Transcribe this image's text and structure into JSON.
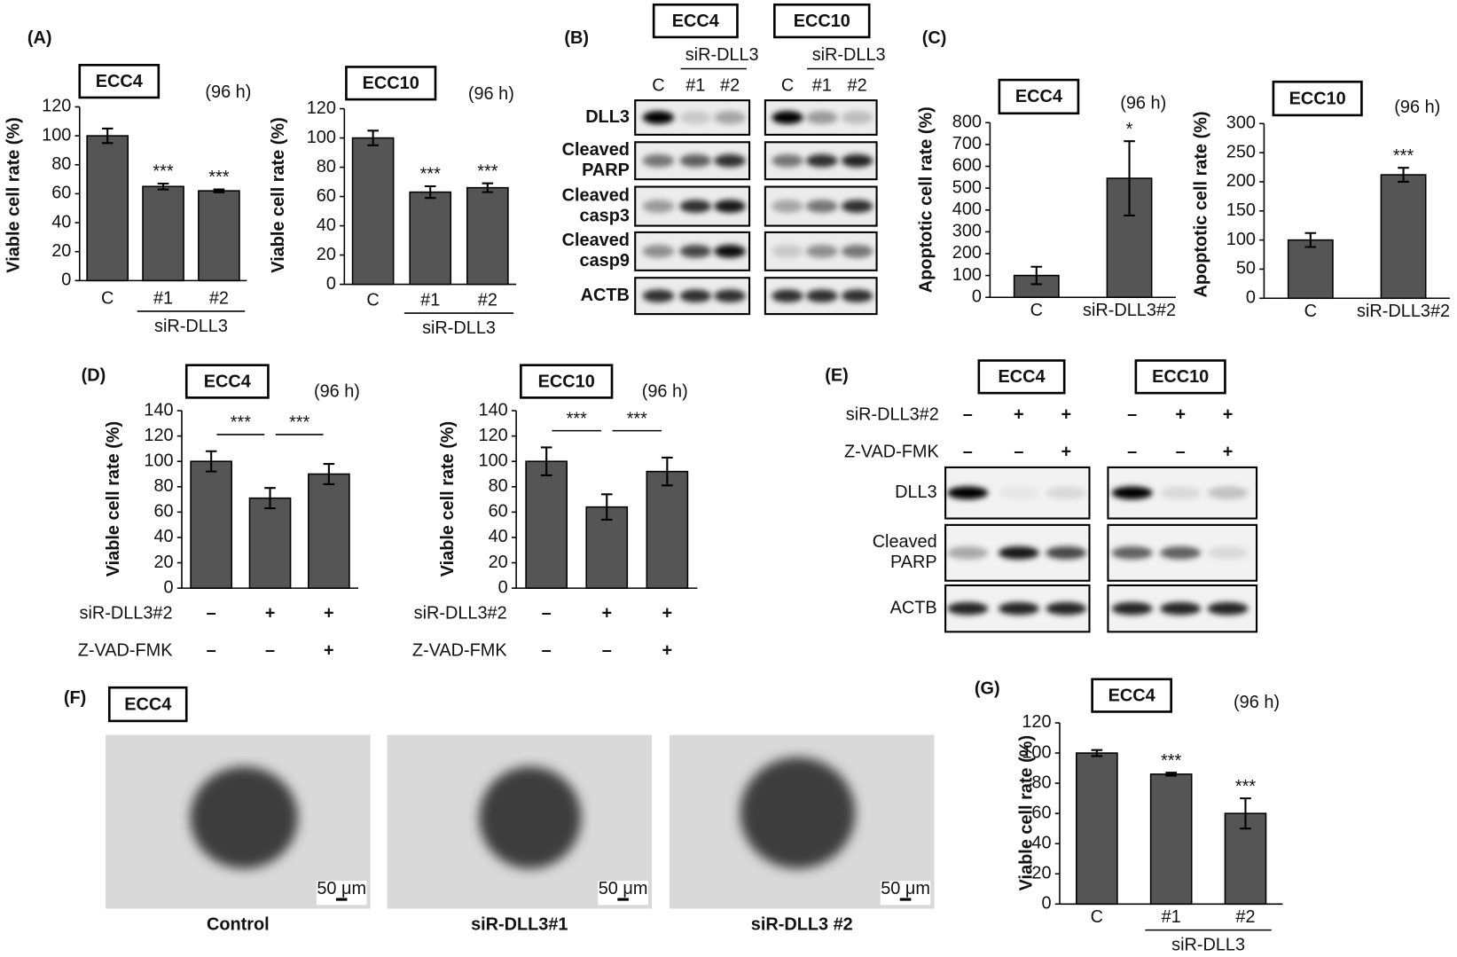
{
  "panel_labels": [
    "(A)",
    "(C)",
    "(D)",
    "(G)"
  ],
  "chart_data": [
    {
      "type": "bar",
      "title": "ECC4",
      "subtitle": "(96 h)",
      "y_label": "Viable cell rate (%)",
      "categories": [
        "C",
        "#1",
        "#2"
      ],
      "category_group": "siR-DLL3",
      "values": [
        100,
        65,
        62
      ],
      "errors": [
        5,
        2,
        1
      ],
      "annotations": [
        null,
        "***",
        "***"
      ],
      "ylim": [
        0,
        120
      ],
      "yticks": [
        0,
        20,
        40,
        60,
        80,
        100,
        120
      ],
      "color": "#555555"
    },
    {
      "type": "bar",
      "title": "ECC10",
      "subtitle": "(96 h)",
      "y_label": "Viable cell rate (%)",
      "categories": [
        "C",
        "#1",
        "#2"
      ],
      "category_group": "siR-DLL3",
      "values": [
        100,
        63,
        66
      ],
      "errors": [
        5,
        4,
        3
      ],
      "annotations": [
        null,
        "***",
        "***"
      ],
      "ylim": [
        0,
        120
      ],
      "yticks": [
        0,
        20,
        40,
        60,
        80,
        100,
        120
      ],
      "color": "#555555"
    },
    {
      "type": "bar",
      "title": "ECC4",
      "subtitle": "(96 h)",
      "y_label": "Apoptotic cell rate (%)",
      "categories": [
        "C",
        "siR-DLL3#2"
      ],
      "values": [
        100,
        545
      ],
      "errors": [
        40,
        170
      ],
      "annotations": [
        null,
        "*"
      ],
      "ylim": [
        0,
        800
      ],
      "yticks": [
        0,
        100,
        200,
        300,
        400,
        500,
        600,
        700,
        800
      ],
      "color": "#555555"
    },
    {
      "type": "bar",
      "title": "ECC10",
      "subtitle": "(96 h)",
      "y_label": "Apoptotic cell rate (%)",
      "categories": [
        "C",
        "siR-DLL3#2"
      ],
      "values": [
        100,
        212
      ],
      "errors": [
        12,
        12
      ],
      "annotations": [
        null,
        "***"
      ],
      "ylim": [
        0,
        300
      ],
      "yticks": [
        0,
        50,
        100,
        150,
        200,
        250,
        300
      ],
      "color": "#555555"
    },
    {
      "type": "bar",
      "title": "ECC4",
      "subtitle": "(96 h)",
      "y_label": "Viable cell rate (%)",
      "values": [
        100,
        71,
        90
      ],
      "errors": [
        8,
        8,
        8
      ],
      "significance": [
        "***",
        "***"
      ],
      "conditions": [
        {
          "name": "siR-DLL3#2",
          "marks": [
            "–",
            "+",
            "+"
          ]
        },
        {
          "name": "Z-VAD-FMK",
          "marks": [
            "–",
            "–",
            "+"
          ]
        }
      ],
      "ylim": [
        0,
        140
      ],
      "yticks": [
        0,
        20,
        40,
        60,
        80,
        100,
        120,
        140
      ],
      "color": "#555555"
    },
    {
      "type": "bar",
      "title": "ECC10",
      "subtitle": "(96 h)",
      "y_label": "Viable cell rate (%)",
      "values": [
        100,
        64,
        92
      ],
      "errors": [
        11,
        10,
        11
      ],
      "significance": [
        "***",
        "***"
      ],
      "conditions": [
        {
          "name": "siR-DLL3#2",
          "marks": [
            "–",
            "+",
            "+"
          ]
        },
        {
          "name": "Z-VAD-FMK",
          "marks": [
            "–",
            "–",
            "+"
          ]
        }
      ],
      "ylim": [
        0,
        140
      ],
      "yticks": [
        0,
        20,
        40,
        60,
        80,
        100,
        120,
        140
      ],
      "color": "#555555"
    },
    {
      "type": "bar",
      "title": "ECC4",
      "subtitle": "(96 h)",
      "y_label": "Viable cell rate (%)",
      "categories": [
        "C",
        "#1",
        "#2"
      ],
      "category_group": "siR-DLL3",
      "values": [
        100,
        86,
        60
      ],
      "errors": [
        2,
        1,
        10
      ],
      "annotations": [
        null,
        "***",
        "***"
      ],
      "ylim": [
        0,
        120
      ],
      "yticks": [
        0,
        20,
        40,
        60,
        80,
        100,
        120
      ],
      "color": "#555555"
    }
  ],
  "blot_B": {
    "label": "(B)",
    "groups": [
      {
        "cell_line": "ECC4",
        "treatment": "siR-DLL3",
        "lanes": [
          "C",
          "#1",
          "#2"
        ]
      },
      {
        "cell_line": "ECC10",
        "treatment": "siR-DLL3",
        "lanes": [
          "C",
          "#1",
          "#2"
        ]
      }
    ],
    "rows": [
      [
        "DLL3"
      ],
      [
        "Cleaved",
        "PARP"
      ],
      [
        "Cleaved",
        "casp3"
      ],
      [
        "Cleaved",
        "casp9"
      ],
      [
        "ACTB"
      ]
    ]
  },
  "blot_E": {
    "label": "(E)",
    "groups": [
      {
        "cell_line": "ECC4"
      },
      {
        "cell_line": "ECC10"
      }
    ],
    "conditions": [
      {
        "name": "siR-DLL3#2",
        "marks": [
          "–",
          "+",
          "+",
          "–",
          "+",
          "+"
        ]
      },
      {
        "name": "Z-VAD-FMK",
        "marks": [
          "–",
          "–",
          "+",
          "–",
          "–",
          "+"
        ]
      }
    ],
    "rows": [
      [
        "DLL3"
      ],
      [
        "Cleaved",
        "PARP"
      ],
      [
        "ACTB"
      ]
    ]
  },
  "images_F": {
    "label": "(F)",
    "title": "ECC4",
    "images": [
      {
        "caption": "Control",
        "scale_bar": "50 μm"
      },
      {
        "caption": "siR-DLL3#1",
        "scale_bar": "50 μm"
      },
      {
        "caption": "siR-DLL3 #2",
        "scale_bar": "50 μm"
      }
    ]
  }
}
